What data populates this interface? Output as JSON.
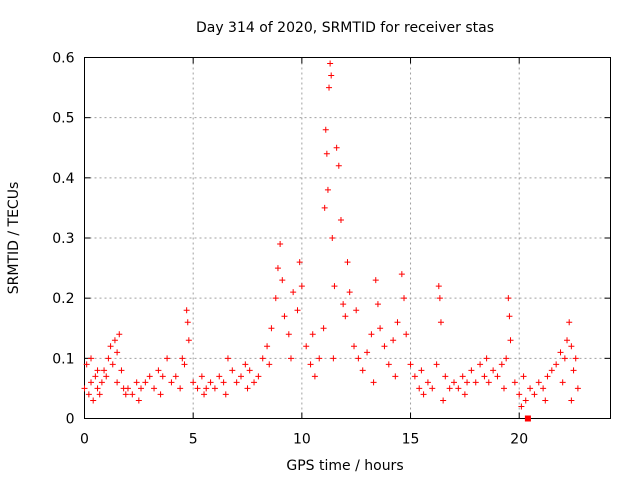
{
  "chart_data": {
    "type": "scatter",
    "title": "Day 314 of 2020, SRMTID for receiver stas",
    "xlabel": "GPS time / hours",
    "ylabel": "SRMTID / TECUs",
    "xlim": [
      0,
      24.2
    ],
    "ylim": [
      0,
      0.6
    ],
    "x_ticks": [
      0,
      5,
      10,
      15,
      20
    ],
    "y_ticks": [
      0,
      0.1,
      0.2,
      0.3,
      0.4,
      0.5,
      0.6
    ],
    "x_tick_labels": [
      "0",
      "5",
      "10",
      "15",
      "20"
    ],
    "y_tick_labels": [
      "0",
      "0.1",
      "0.2",
      "0.3",
      "0.4",
      "0.5",
      "0.6"
    ],
    "grid": true,
    "marker": "+",
    "color": "#ff0000",
    "series": [
      {
        "name": "SRMTID",
        "points": [
          [
            0.0,
            0.05
          ],
          [
            0.1,
            0.09
          ],
          [
            0.2,
            0.04
          ],
          [
            0.3,
            0.06
          ],
          [
            0.4,
            0.03
          ],
          [
            0.5,
            0.07
          ],
          [
            0.6,
            0.05
          ],
          [
            0.7,
            0.04
          ],
          [
            0.8,
            0.06
          ],
          [
            0.9,
            0.08
          ],
          [
            1.0,
            0.07
          ],
          [
            1.1,
            0.1
          ],
          [
            1.2,
            0.12
          ],
          [
            1.3,
            0.09
          ],
          [
            1.4,
            0.13
          ],
          [
            1.5,
            0.11
          ],
          [
            1.6,
            0.14
          ],
          [
            1.7,
            0.08
          ],
          [
            1.8,
            0.05
          ],
          [
            1.9,
            0.04
          ],
          [
            2.0,
            0.05
          ],
          [
            2.2,
            0.04
          ],
          [
            2.4,
            0.06
          ],
          [
            2.6,
            0.05
          ],
          [
            2.8,
            0.06
          ],
          [
            3.0,
            0.07
          ],
          [
            3.2,
            0.05
          ],
          [
            3.4,
            0.08
          ],
          [
            3.6,
            0.07
          ],
          [
            3.8,
            0.1
          ],
          [
            4.0,
            0.06
          ],
          [
            4.2,
            0.07
          ],
          [
            4.4,
            0.05
          ],
          [
            4.6,
            0.09
          ],
          [
            4.7,
            0.18
          ],
          [
            4.75,
            0.16
          ],
          [
            4.8,
            0.13
          ],
          [
            5.0,
            0.06
          ],
          [
            5.2,
            0.05
          ],
          [
            5.4,
            0.07
          ],
          [
            5.6,
            0.05
          ],
          [
            5.8,
            0.06
          ],
          [
            6.0,
            0.05
          ],
          [
            6.2,
            0.07
          ],
          [
            6.4,
            0.06
          ],
          [
            6.6,
            0.1
          ],
          [
            6.8,
            0.08
          ],
          [
            7.0,
            0.06
          ],
          [
            7.2,
            0.07
          ],
          [
            7.4,
            0.09
          ],
          [
            7.6,
            0.08
          ],
          [
            7.8,
            0.06
          ],
          [
            8.0,
            0.07
          ],
          [
            8.2,
            0.1
          ],
          [
            8.4,
            0.12
          ],
          [
            8.6,
            0.15
          ],
          [
            8.8,
            0.2
          ],
          [
            8.9,
            0.25
          ],
          [
            9.0,
            0.29
          ],
          [
            9.1,
            0.23
          ],
          [
            9.2,
            0.17
          ],
          [
            9.4,
            0.14
          ],
          [
            9.6,
            0.21
          ],
          [
            9.8,
            0.18
          ],
          [
            9.9,
            0.26
          ],
          [
            10.0,
            0.22
          ],
          [
            10.2,
            0.12
          ],
          [
            10.4,
            0.09
          ],
          [
            10.6,
            0.07
          ],
          [
            10.8,
            0.1
          ],
          [
            11.0,
            0.15
          ],
          [
            11.05,
            0.35
          ],
          [
            11.1,
            0.48
          ],
          [
            11.15,
            0.44
          ],
          [
            11.2,
            0.38
          ],
          [
            11.25,
            0.55
          ],
          [
            11.3,
            0.59
          ],
          [
            11.35,
            0.57
          ],
          [
            11.4,
            0.3
          ],
          [
            11.5,
            0.22
          ],
          [
            11.6,
            0.45
          ],
          [
            11.7,
            0.42
          ],
          [
            11.8,
            0.33
          ],
          [
            11.9,
            0.19
          ],
          [
            12.0,
            0.17
          ],
          [
            12.1,
            0.26
          ],
          [
            12.2,
            0.21
          ],
          [
            12.4,
            0.12
          ],
          [
            12.6,
            0.1
          ],
          [
            12.8,
            0.08
          ],
          [
            13.0,
            0.11
          ],
          [
            13.2,
            0.14
          ],
          [
            13.4,
            0.23
          ],
          [
            13.5,
            0.19
          ],
          [
            13.6,
            0.15
          ],
          [
            13.8,
            0.12
          ],
          [
            14.0,
            0.09
          ],
          [
            14.2,
            0.13
          ],
          [
            14.4,
            0.16
          ],
          [
            14.6,
            0.24
          ],
          [
            14.7,
            0.2
          ],
          [
            14.8,
            0.14
          ],
          [
            15.0,
            0.09
          ],
          [
            15.2,
            0.07
          ],
          [
            15.4,
            0.05
          ],
          [
            15.6,
            0.04
          ],
          [
            15.8,
            0.06
          ],
          [
            16.0,
            0.05
          ],
          [
            16.2,
            0.09
          ],
          [
            16.3,
            0.22
          ],
          [
            16.35,
            0.2
          ],
          [
            16.4,
            0.16
          ],
          [
            16.6,
            0.07
          ],
          [
            16.8,
            0.05
          ],
          [
            17.0,
            0.06
          ],
          [
            17.2,
            0.05
          ],
          [
            17.4,
            0.07
          ],
          [
            17.6,
            0.06
          ],
          [
            17.8,
            0.08
          ],
          [
            18.0,
            0.06
          ],
          [
            18.2,
            0.09
          ],
          [
            18.4,
            0.07
          ],
          [
            18.6,
            0.06
          ],
          [
            18.8,
            0.08
          ],
          [
            19.0,
            0.07
          ],
          [
            19.2,
            0.09
          ],
          [
            19.4,
            0.1
          ],
          [
            19.5,
            0.2
          ],
          [
            19.55,
            0.17
          ],
          [
            19.6,
            0.13
          ],
          [
            19.8,
            0.06
          ],
          [
            20.0,
            0.04
          ],
          [
            20.1,
            0.02
          ],
          [
            20.3,
            0.03
          ],
          [
            20.5,
            0.05
          ],
          [
            20.7,
            0.04
          ],
          [
            20.9,
            0.06
          ],
          [
            21.1,
            0.05
          ],
          [
            21.3,
            0.07
          ],
          [
            21.5,
            0.08
          ],
          [
            21.7,
            0.09
          ],
          [
            21.9,
            0.11
          ],
          [
            22.1,
            0.1
          ],
          [
            22.2,
            0.13
          ],
          [
            22.3,
            0.16
          ],
          [
            22.4,
            0.12
          ],
          [
            22.5,
            0.08
          ],
          [
            22.6,
            0.1
          ],
          [
            22.7,
            0.05
          ],
          [
            0.3,
            0.1
          ],
          [
            0.6,
            0.08
          ],
          [
            1.5,
            0.06
          ],
          [
            2.5,
            0.03
          ],
          [
            3.5,
            0.04
          ],
          [
            4.5,
            0.1
          ],
          [
            5.5,
            0.04
          ],
          [
            6.5,
            0.04
          ],
          [
            7.5,
            0.05
          ],
          [
            8.5,
            0.09
          ],
          [
            9.5,
            0.1
          ],
          [
            10.5,
            0.14
          ],
          [
            11.45,
            0.1
          ],
          [
            12.5,
            0.18
          ],
          [
            13.3,
            0.06
          ],
          [
            14.3,
            0.07
          ],
          [
            15.5,
            0.08
          ],
          [
            16.5,
            0.03
          ],
          [
            17.5,
            0.04
          ],
          [
            18.5,
            0.1
          ],
          [
            19.3,
            0.05
          ],
          [
            20.2,
            0.07
          ],
          [
            21.2,
            0.03
          ],
          [
            22.0,
            0.06
          ],
          [
            22.4,
            0.03
          ]
        ]
      }
    ],
    "extra_marker": {
      "x": 20.4,
      "y": 0.0,
      "shape": "square"
    }
  }
}
